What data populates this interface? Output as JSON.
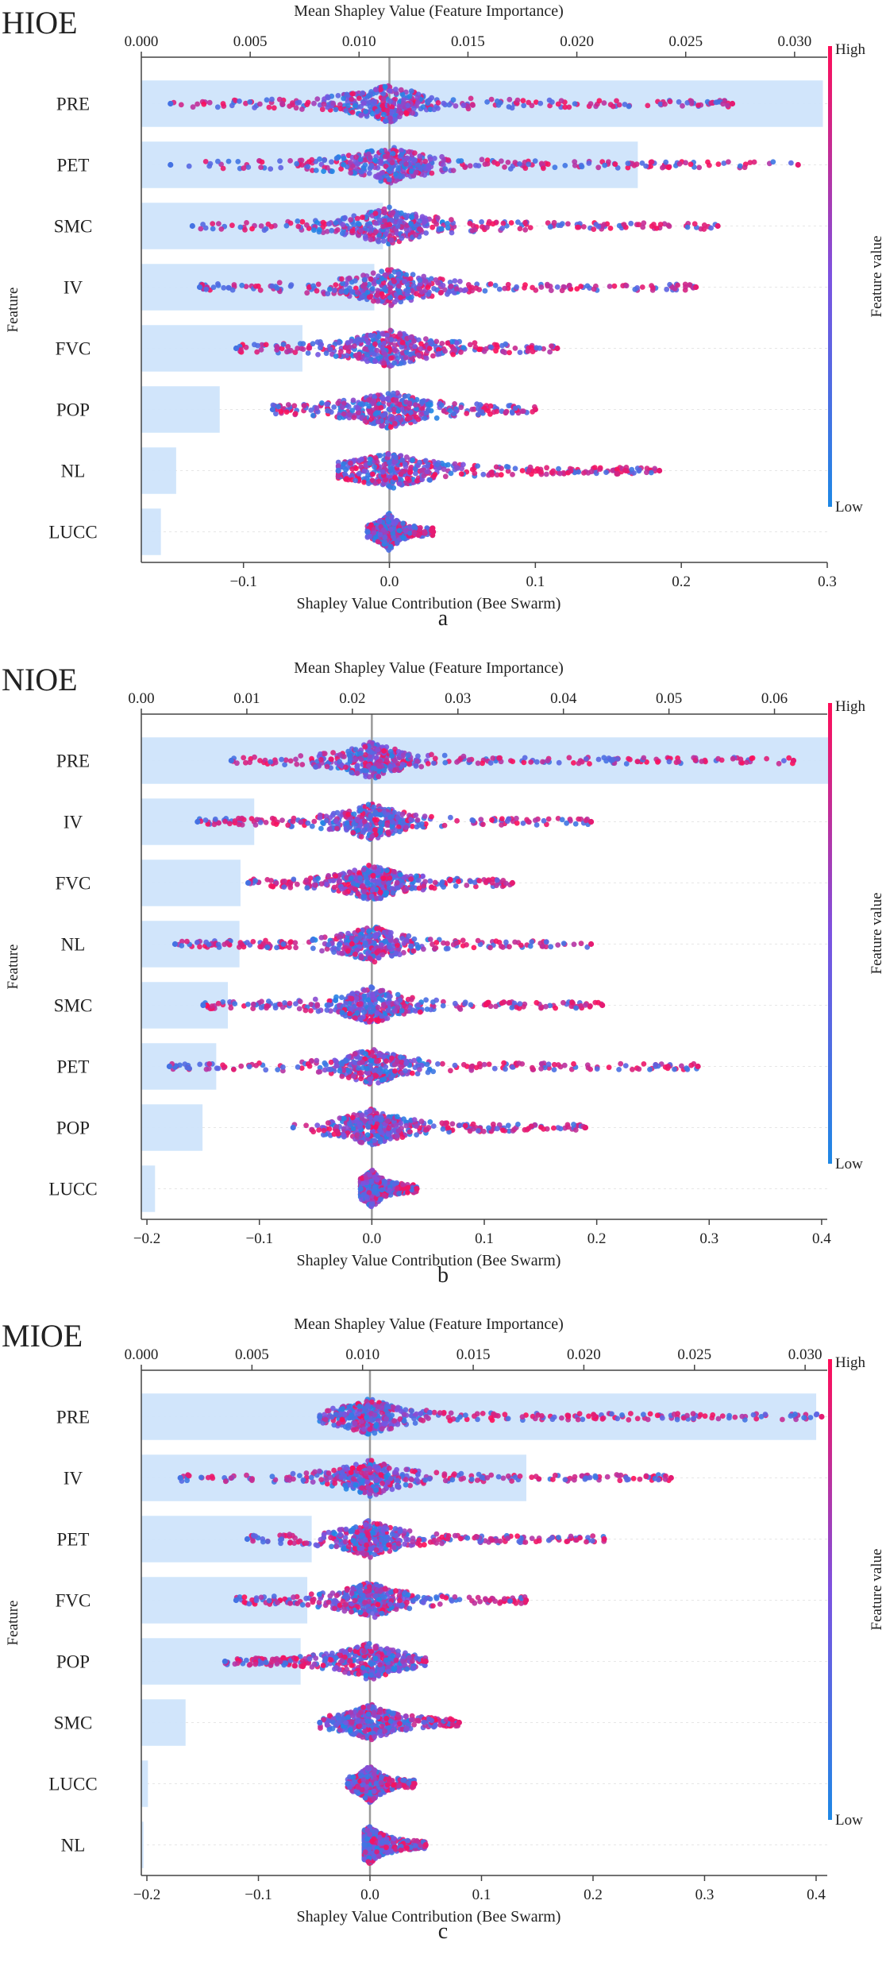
{
  "figure": {
    "panels": [
      "a",
      "b",
      "c"
    ]
  },
  "colorbar": {
    "high_label": "High",
    "low_label": "Low",
    "title": "Feature value",
    "high_color": "#ff0d57",
    "low_color": "#1e88e5"
  },
  "chart_data": [
    {
      "type": "bar",
      "overlay": "beeswarm",
      "title": "HIOE",
      "panel_label": "a",
      "ylabel": "Feature",
      "top_axis_label": "Mean Shapley Value (Feature Importance)",
      "bottom_axis_label": "Shapley Value Contribution (Bee Swarm)",
      "top_xlim": [
        0,
        0.0315
      ],
      "top_ticks": [
        "0.000",
        "0.005",
        "0.010",
        "0.015",
        "0.020",
        "0.025",
        "0.030"
      ],
      "bottom_xlim": [
        -0.17,
        0.3
      ],
      "bottom_ticks": [
        "-0.1",
        "0.0",
        "0.1",
        "0.2",
        "0.3"
      ],
      "categories": [
        "PRE",
        "PET",
        "SMC",
        "IV",
        "FVC",
        "POP",
        "NL",
        "LUCC"
      ],
      "mean_shap": [
        0.0313,
        0.0228,
        0.0111,
        0.0107,
        0.0074,
        0.0036,
        0.0016,
        0.0009
      ],
      "swarm_ranges": [
        {
          "feature": "PRE",
          "min": -0.15,
          "max": 0.235
        },
        {
          "feature": "PET",
          "min": -0.15,
          "max": 0.28
        },
        {
          "feature": "SMC",
          "min": -0.135,
          "max": 0.225
        },
        {
          "feature": "IV",
          "min": -0.13,
          "max": 0.21
        },
        {
          "feature": "FVC",
          "min": -0.105,
          "max": 0.115
        },
        {
          "feature": "POP",
          "min": -0.08,
          "max": 0.1
        },
        {
          "feature": "NL",
          "min": -0.035,
          "max": 0.185
        },
        {
          "feature": "LUCC",
          "min": -0.015,
          "max": 0.03
        }
      ]
    },
    {
      "type": "bar",
      "overlay": "beeswarm",
      "title": "NIOE",
      "panel_label": "b",
      "ylabel": "Feature",
      "top_axis_label": "Mean Shapley Value (Feature Importance)",
      "bottom_axis_label": "Shapley Value Contribution (Bee Swarm)",
      "top_xlim": [
        0,
        0.065
      ],
      "top_ticks": [
        "0.00",
        "0.01",
        "0.02",
        "0.03",
        "0.04",
        "0.05",
        "0.06"
      ],
      "bottom_xlim": [
        -0.205,
        0.405
      ],
      "bottom_ticks": [
        "-0.2",
        "-0.1",
        "0.0",
        "0.1",
        "0.2",
        "0.3",
        "0.4"
      ],
      "categories": [
        "PRE",
        "IV",
        "FVC",
        "NL",
        "SMC",
        "PET",
        "POP",
        "LUCC"
      ],
      "mean_shap": [
        0.0653,
        0.0107,
        0.0094,
        0.0093,
        0.0082,
        0.0071,
        0.0058,
        0.0013
      ],
      "swarm_ranges": [
        {
          "feature": "PRE",
          "min": -0.125,
          "max": 0.375
        },
        {
          "feature": "IV",
          "min": -0.155,
          "max": 0.195
        },
        {
          "feature": "FVC",
          "min": -0.11,
          "max": 0.125
        },
        {
          "feature": "NL",
          "min": -0.175,
          "max": 0.195
        },
        {
          "feature": "SMC",
          "min": -0.15,
          "max": 0.205
        },
        {
          "feature": "PET",
          "min": -0.18,
          "max": 0.29
        },
        {
          "feature": "POP",
          "min": -0.07,
          "max": 0.19
        },
        {
          "feature": "LUCC",
          "min": -0.01,
          "max": 0.04
        }
      ]
    },
    {
      "type": "bar",
      "overlay": "beeswarm",
      "title": "MIOE",
      "panel_label": "c",
      "ylabel": "Feature",
      "top_axis_label": "Mean Shapley Value (Feature Importance)",
      "bottom_axis_label": "Shapley Value Contribution (Bee Swarm)",
      "top_xlim": [
        0,
        0.031
      ],
      "top_ticks": [
        "0.000",
        "0.005",
        "0.010",
        "0.015",
        "0.020",
        "0.025",
        "0.030"
      ],
      "bottom_xlim": [
        -0.205,
        0.41
      ],
      "bottom_ticks": [
        "-0.2",
        "-0.1",
        "0.0",
        "0.1",
        "0.2",
        "0.3",
        "0.4"
      ],
      "categories": [
        "PRE",
        "IV",
        "PET",
        "FVC",
        "POP",
        "SMC",
        "LUCC",
        "NL"
      ],
      "mean_shap": [
        0.0305,
        0.0174,
        0.0077,
        0.0075,
        0.0072,
        0.002,
        0.0003,
        0.0001
      ],
      "swarm_ranges": [
        {
          "feature": "PRE",
          "min": -0.045,
          "max": 0.405
        },
        {
          "feature": "IV",
          "min": -0.17,
          "max": 0.27
        },
        {
          "feature": "PET",
          "min": -0.11,
          "max": 0.21
        },
        {
          "feature": "FVC",
          "min": -0.12,
          "max": 0.14
        },
        {
          "feature": "POP",
          "min": -0.13,
          "max": 0.05
        },
        {
          "feature": "SMC",
          "min": -0.045,
          "max": 0.08
        },
        {
          "feature": "LUCC",
          "min": -0.02,
          "max": 0.04
        },
        {
          "feature": "NL",
          "min": -0.005,
          "max": 0.05
        }
      ]
    }
  ]
}
